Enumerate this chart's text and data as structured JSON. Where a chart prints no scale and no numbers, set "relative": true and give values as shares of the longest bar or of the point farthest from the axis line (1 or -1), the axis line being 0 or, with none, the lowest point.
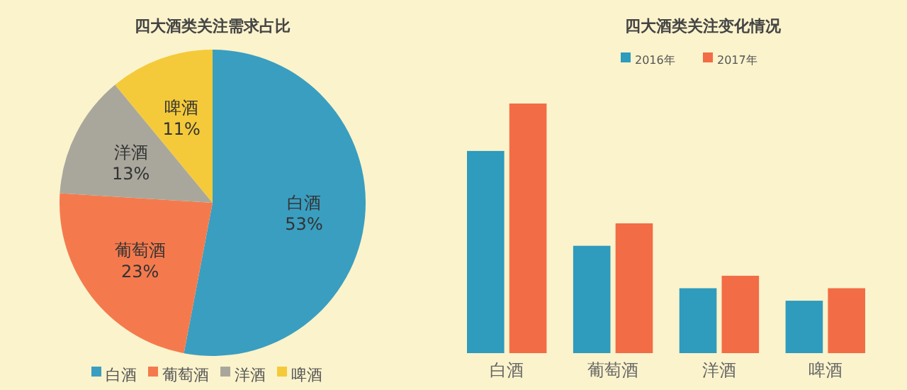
{
  "chart_data": [
    {
      "type": "pie",
      "title": "四大酒类关注需求占比",
      "categories": [
        "白酒",
        "葡萄酒",
        "洋酒",
        "啤酒"
      ],
      "values": [
        53,
        23,
        13,
        11
      ],
      "colors": [
        "#3a9ec0",
        "#f47a4e",
        "#a9a79c",
        "#f4ca3a"
      ],
      "value_labels": [
        "53%",
        "23%",
        "13%",
        "11%"
      ],
      "legend": "bottom"
    },
    {
      "type": "bar",
      "title": "四大酒类关注变化情况",
      "categories": [
        "白酒",
        "葡萄酒",
        "洋酒",
        "啤酒"
      ],
      "relative": true,
      "legend": "top",
      "series": [
        {
          "name": "2016年",
          "color": "#2f9bbd",
          "values": [
            0.81,
            0.43,
            0.26,
            0.21
          ]
        },
        {
          "name": "2017年",
          "color": "#f26c45",
          "values": [
            1,
            0.52,
            0.31,
            0.26
          ]
        }
      ]
    }
  ]
}
